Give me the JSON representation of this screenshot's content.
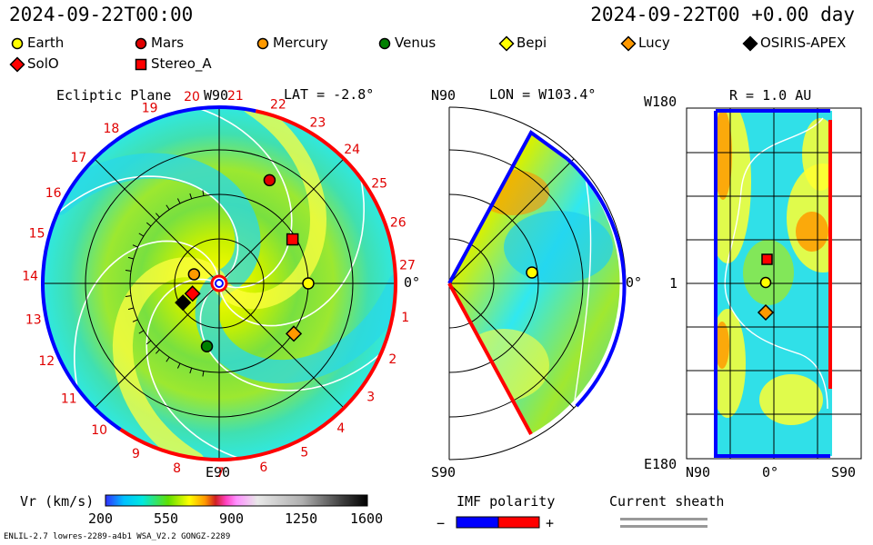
{
  "header": {
    "time_left": "2024-09-22T00:00",
    "time_right": "2024-09-22T00 +0.00 day"
  },
  "legend": [
    {
      "label": "Earth",
      "marker": "circle",
      "color": "#ffff00"
    },
    {
      "label": "Mars",
      "marker": "circle",
      "color": "#e00000"
    },
    {
      "label": "Mercury",
      "marker": "circle",
      "color": "#ff9900"
    },
    {
      "label": "Venus",
      "marker": "circle",
      "color": "#008000"
    },
    {
      "label": "Bepi",
      "marker": "diamond",
      "color": "#ffff00"
    },
    {
      "label": "Lucy",
      "marker": "diamond",
      "color": "#ff9900"
    },
    {
      "label": "OSIRIS-APEX",
      "marker": "diamond",
      "color": "#000000"
    },
    {
      "label": "SolO",
      "marker": "diamond",
      "color": "#ff0000"
    },
    {
      "label": "Stereo_A",
      "marker": "square",
      "color": "#ff0000"
    }
  ],
  "panels": {
    "ecliptic": {
      "title": "Ecliptic Plane",
      "top": "W90",
      "bottom": "E90",
      "lat": "LAT = -2.8°",
      "right": "0°"
    },
    "meridional": {
      "top": "N90",
      "bottom": "S90",
      "lon": "LON = W103.4°",
      "right": "0°"
    },
    "sphere": {
      "title": "R = 1.0 AU",
      "top_left": "W180",
      "bottom_left": "E180",
      "mid_left": "1",
      "xaxis": [
        "N90",
        "0°",
        "S90"
      ]
    }
  },
  "colorbar": {
    "label": "Vr (km/s)",
    "ticks": [
      "200",
      "550",
      "900",
      "1250",
      "1600"
    ]
  },
  "imf": {
    "title": "IMF polarity",
    "minus": "−",
    "plus": "+",
    "neg_color": "#0000ff",
    "pos_color": "#ff0000"
  },
  "sheath": {
    "title": "Current sheath"
  },
  "footer": {
    "left": "ENLIL-2.7 lowres-2289-a4b1 WSA_V2.2 GONGZ-2289"
  },
  "chart_data": {
    "type": "scatter",
    "title": "Ecliptic Plane",
    "carrington_ticks": [
      "1",
      "2",
      "3",
      "4",
      "5",
      "6",
      "7",
      "8",
      "9",
      "10",
      "11",
      "12",
      "13",
      "14",
      "15",
      "16",
      "17",
      "18",
      "19",
      "20",
      "21",
      "22",
      "23",
      "24",
      "25",
      "26",
      "27"
    ],
    "vr_range": [
      200,
      1600
    ],
    "positions_ecliptic": [
      {
        "name": "Earth",
        "r_au": 1.0,
        "lon_deg": 0
      },
      {
        "name": "Mars",
        "r_au": 1.29,
        "lon_deg": 64
      },
      {
        "name": "Mercury",
        "r_au": 0.3,
        "lon_deg": 160
      },
      {
        "name": "Venus",
        "r_au": 0.72,
        "lon_deg": 259
      },
      {
        "name": "Lucy",
        "r_au": 1.01,
        "lon_deg": 326
      },
      {
        "name": "OSIRIS-APEX",
        "r_au": 0.46,
        "lon_deg": 208
      },
      {
        "name": "SolO",
        "r_au": 0.32,
        "lon_deg": 201
      },
      {
        "name": "Stereo_A",
        "r_au": 0.96,
        "lon_deg": 31
      }
    ]
  }
}
